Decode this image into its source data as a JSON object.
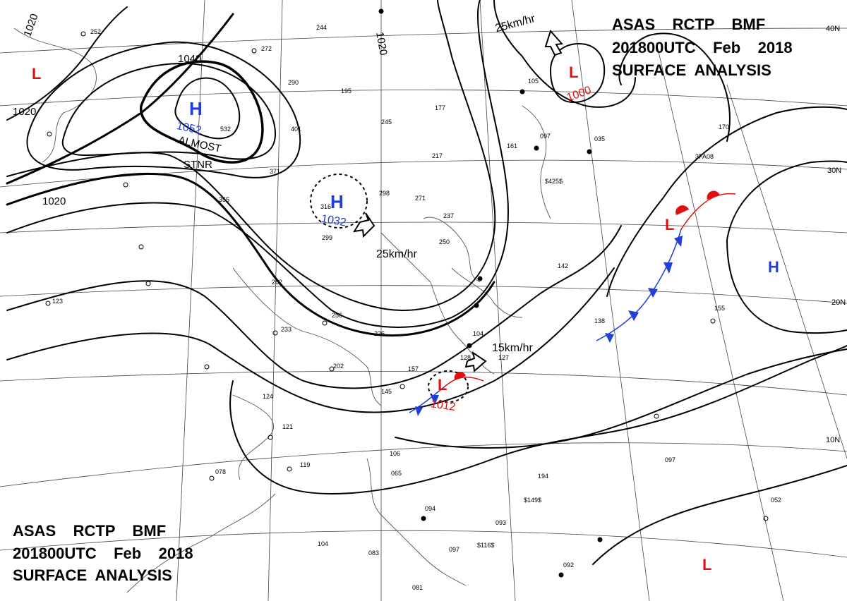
{
  "title_top": {
    "line1": "ASAS    RCTP    BMF",
    "line2": "201800UTC    Feb    2018",
    "line3": "SURFACE  ANALYSIS"
  },
  "title_bottom": {
    "line1": "ASAS    RCTP    BMF",
    "line2": "201800UTC    Feb    2018",
    "line3": "SURFACE  ANALYSIS"
  },
  "latitude_labels": [
    "40N",
    "30N",
    "20N",
    "10N"
  ],
  "isobar_labels": [
    "1020",
    "1020",
    "1020",
    "1040",
    "1020"
  ],
  "pressure_systems": [
    {
      "type": "H",
      "value": "1052",
      "color": "#1f3fd6"
    },
    {
      "type": "H",
      "value": "1032",
      "color": "#1f3fd6"
    },
    {
      "type": "L",
      "value": "1000",
      "color": "#e01010"
    },
    {
      "type": "L",
      "value": "1012",
      "color": "#e01010"
    },
    {
      "type": "L",
      "value": "",
      "color": "#e01010"
    },
    {
      "type": "L",
      "value": "",
      "color": "#e01010"
    },
    {
      "type": "L",
      "value": "",
      "color": "#e01010"
    },
    {
      "type": "H",
      "value": "",
      "color": "#1f3fd6"
    }
  ],
  "movement_speeds": [
    "25km/hr",
    "25km/hr",
    "15km/hr"
  ],
  "annotation": {
    "line1": "ALMOST",
    "line2": "STNR"
  },
  "front_colors": {
    "cold": "#1f3fd6",
    "warm": "#e01010"
  },
  "station_obs": [
    "252",
    "272",
    "244",
    "290",
    "195",
    "245",
    "177",
    "105",
    "035",
    "097",
    "161",
    "217",
    "532",
    "401",
    "371",
    "355",
    "316",
    "299",
    "271",
    "298",
    "237",
    "250",
    "262",
    "256",
    "233",
    "226",
    "202",
    "124",
    "121",
    "078",
    "119",
    "123",
    "157",
    "145",
    "128",
    "104",
    "127",
    "142",
    "138",
    "155",
    "170",
    "106",
    "065",
    "094",
    "093",
    "097",
    "104",
    "083",
    "081",
    "194",
    "097",
    "092",
    "052",
    "$149$",
    "$116$",
    "$425$",
    "3FA08"
  ]
}
